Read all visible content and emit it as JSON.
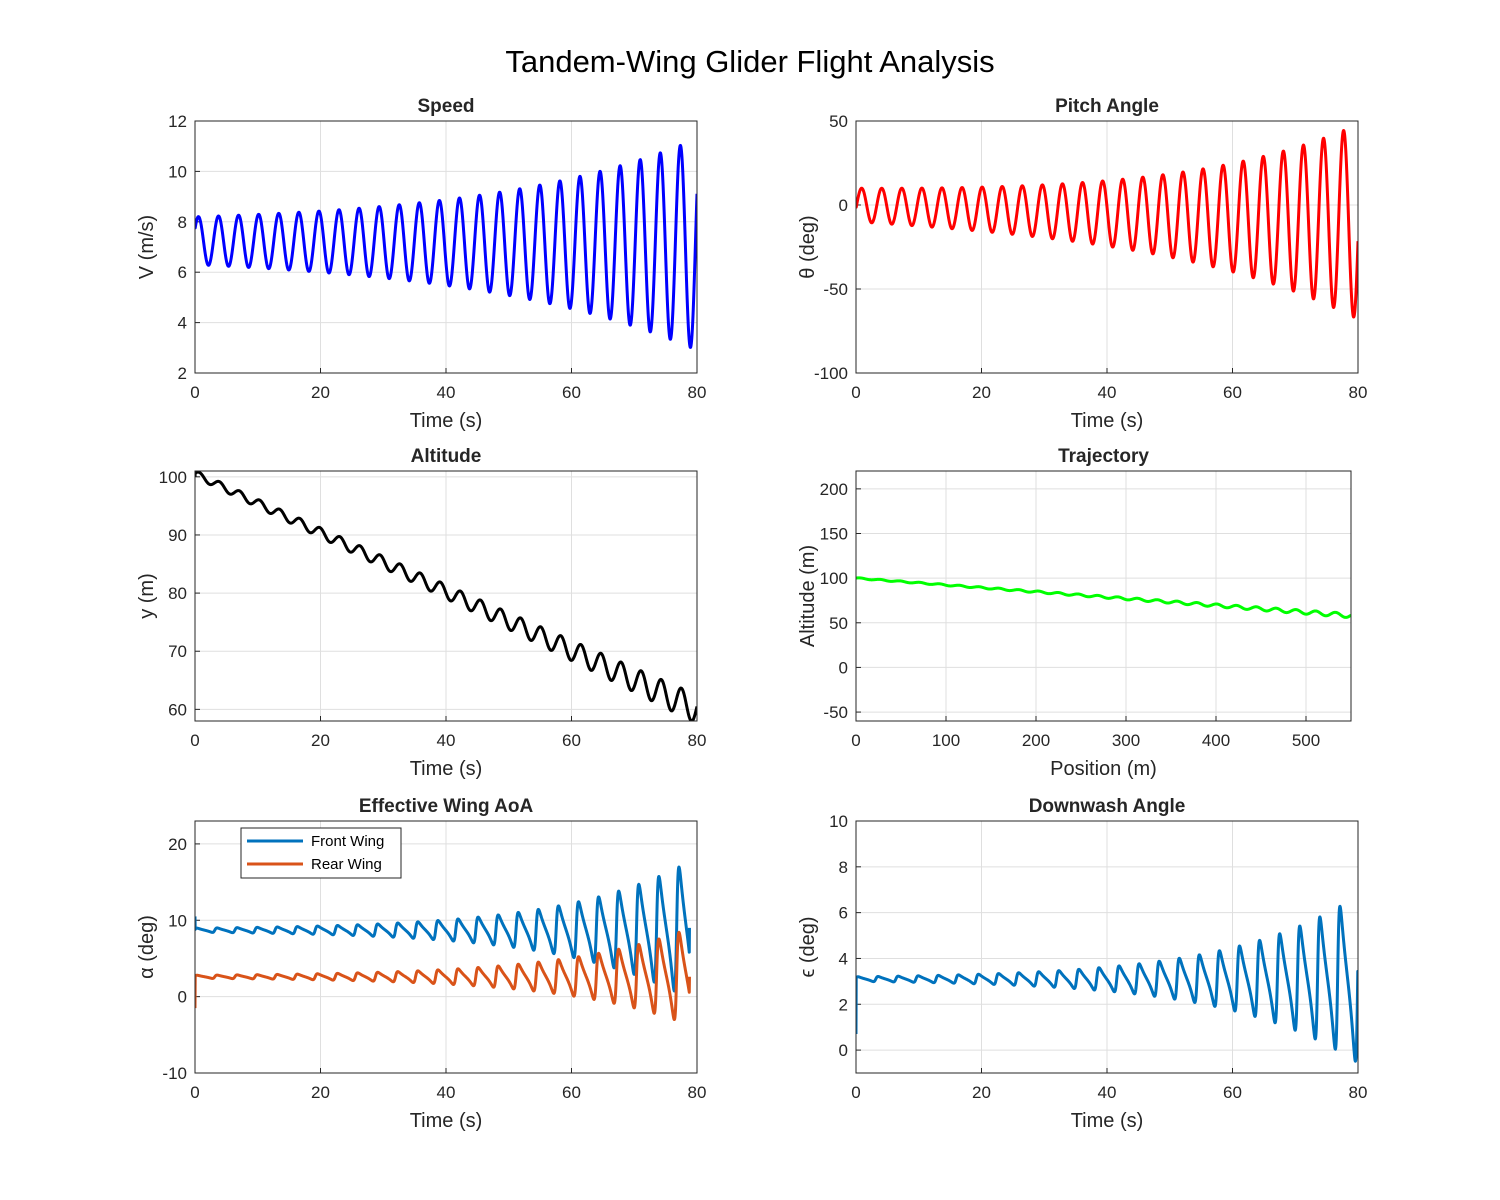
{
  "figure": {
    "suptitle": "Tandem-Wing Glider Flight Analysis"
  },
  "chart_data": [
    {
      "type": "line",
      "title": "Speed",
      "xlabel": "Time (s)",
      "ylabel": "V (m/s)",
      "xlim": [
        0,
        80
      ],
      "ylim": [
        2,
        12
      ],
      "xticks": [
        "0",
        "20",
        "40",
        "60",
        "80"
      ],
      "yticks": [
        "2",
        "4",
        "6",
        "8",
        "10",
        "12"
      ],
      "grid": true,
      "series": [
        {
          "color": "#0000ff",
          "model": {
            "kind": "osc",
            "t_end": 80,
            "period": 3.2,
            "phase": 0.5,
            "base": [
              7.25,
              7.1
            ],
            "amp": [
              0.95,
              4.2
            ],
            "growth": 2.4,
            "start": 7.8
          }
        }
      ]
    },
    {
      "type": "line",
      "title": "Pitch Angle",
      "xlabel": "Time (s)",
      "ylabel": "θ (deg)",
      "xlim": [
        0,
        80
      ],
      "ylim": [
        -100,
        50
      ],
      "xticks": [
        "0",
        "20",
        "40",
        "60",
        "80"
      ],
      "yticks": [
        "-100",
        "-50",
        "0",
        "50"
      ],
      "grid": true,
      "series": [
        {
          "color": "#ff0000",
          "model": {
            "kind": "osc",
            "t_end": 80,
            "period": 3.2,
            "phase": -0.2,
            "base": [
              0,
              -10
            ],
            "amp": [
              10,
              58
            ],
            "growth": 2.8,
            "start": 3
          }
        }
      ]
    },
    {
      "type": "line",
      "title": "Altitude",
      "xlabel": "Time (s)",
      "ylabel": "y (m)",
      "xlim": [
        0,
        80
      ],
      "ylim": [
        58,
        101
      ],
      "xticks": [
        "0",
        "20",
        "40",
        "60",
        "80"
      ],
      "yticks": [
        "60",
        "70",
        "80",
        "90",
        "100"
      ],
      "grid": true,
      "series": [
        {
          "color": "#000000",
          "model": {
            "kind": "osc",
            "t_end": 80,
            "period": 3.2,
            "phase": 0.2,
            "base": [
              100.5,
              60
            ],
            "amp": [
              0.6,
              2.5
            ],
            "growth": 1.5,
            "start": 100
          }
        }
      ]
    },
    {
      "type": "line",
      "title": "Trajectory",
      "xlabel": "Position (m)",
      "ylabel": "Altitude (m)",
      "xlim": [
        0,
        550
      ],
      "ylim": [
        -60,
        220
      ],
      "xticks": [
        "0",
        "100",
        "200",
        "300",
        "400",
        "500"
      ],
      "yticks": [
        "-50",
        "0",
        "50",
        "100",
        "150",
        "200"
      ],
      "grid": true,
      "series": [
        {
          "color": "#00ff00",
          "model": {
            "kind": "osc",
            "t_end": 550,
            "period": 22,
            "phase": 0.2,
            "base": [
              100,
              58
            ],
            "amp": [
              0.6,
              2.5
            ],
            "growth": 1.5,
            "start": 100
          }
        }
      ]
    },
    {
      "type": "line",
      "title": "Effective Wing AoA",
      "xlabel": "Time (s)",
      "ylabel": "α (deg)",
      "xlim": [
        0,
        80
      ],
      "ylim": [
        -10,
        23
      ],
      "xticks": [
        "0",
        "20",
        "40",
        "60",
        "80"
      ],
      "yticks": [
        "-10",
        "0",
        "10",
        "20"
      ],
      "grid": true,
      "legend": "top-left",
      "series": [
        {
          "name": "Front Wing",
          "color": "#0072bd",
          "model": {
            "kind": "spiky",
            "t_end": 78.8,
            "period": 3.2,
            "phase": 0.1,
            "base": 8.7,
            "amp": [
              0.4,
              13.5
            ],
            "growth": 4,
            "start": 10.5,
            "end": 9
          }
        },
        {
          "name": "Rear Wing",
          "color": "#d95319",
          "model": {
            "kind": "spiky",
            "t_end": 78.8,
            "period": 3.2,
            "phase": 0.1,
            "base": 2.6,
            "amp": [
              0.3,
              9.5
            ],
            "growth": 4,
            "start": -1.5,
            "end": 2.6
          }
        }
      ]
    },
    {
      "type": "line",
      "title": "Downwash Angle",
      "xlabel": "Time (s)",
      "ylabel": "ϵ (deg)",
      "xlim": [
        0,
        80
      ],
      "ylim": [
        -1,
        10
      ],
      "xticks": [
        "0",
        "20",
        "40",
        "60",
        "80"
      ],
      "yticks": [
        "0",
        "2",
        "4",
        "6",
        "8",
        "10"
      ],
      "grid": true,
      "series": [
        {
          "color": "#0072bd",
          "model": {
            "kind": "spiky",
            "t_end": 80,
            "period": 3.2,
            "phase": 0.1,
            "base": 3.1,
            "amp": [
              0.15,
              5.5
            ],
            "growth": 4,
            "start": 0.7,
            "end": 3.2
          }
        }
      ]
    }
  ]
}
